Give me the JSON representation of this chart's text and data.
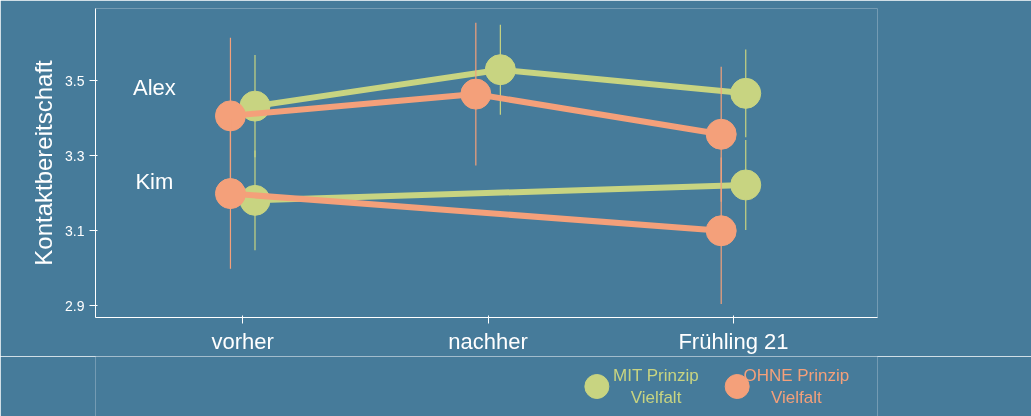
{
  "chart_data": {
    "type": "line",
    "ylabel": "Kontaktbereitschaft",
    "categories": [
      "vorher",
      "nachher",
      "Frühling 21"
    ],
    "series": [
      {
        "name": "MIT Prinzip Vielfalt",
        "color": "#c8d481",
        "values": [
          3.432,
          3.529,
          3.466
        ],
        "errors": [
          0.136,
          0.12,
          0.117
        ]
      },
      {
        "name": "OHNE Prinzip Vielfalt",
        "color": "#f4a07a",
        "values": [
          3.406,
          3.464,
          3.357
        ],
        "errors": [
          0.208,
          0.19,
          0.18
        ]
      },
      {
        "color": "#c8d481",
        "values": [
          3.181,
          null,
          3.222
        ],
        "errors": [
          0.133,
          null,
          0.12
        ]
      },
      {
        "color": "#f4a07a",
        "values": [
          3.199,
          null,
          3.1
        ],
        "errors": [
          0.2,
          null,
          0.195
        ]
      }
    ],
    "annotations": [
      "Alex",
      "Kim"
    ],
    "ylim": [
      2.869,
      3.692
    ],
    "yticks": [
      2.9,
      3.1,
      3.3,
      3.5
    ],
    "marker": "circle",
    "line_style": "solid",
    "grid": false,
    "legend": "bottom right"
  }
}
